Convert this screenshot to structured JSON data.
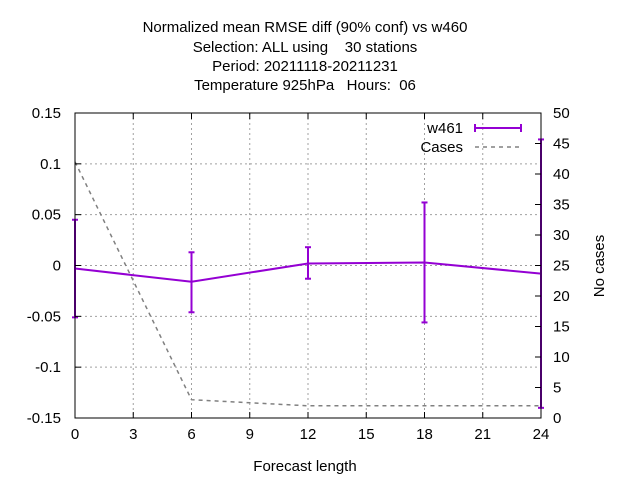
{
  "chart_data": {
    "type": "line",
    "title_lines": [
      "Normalized mean RMSE diff (90% conf) vs w460",
      "Selection: ALL using    30 stations",
      "Period: 20211118-20211231",
      "Temperature 925hPa   Hours:  06"
    ],
    "xlabel": "Forecast length",
    "ylabel": "",
    "y2label": "No cases",
    "xlim": [
      0,
      24
    ],
    "ylim": [
      -0.15,
      0.15
    ],
    "y2lim": [
      0,
      50
    ],
    "xticks": [
      "0",
      "3",
      "6",
      "9",
      "12",
      "15",
      "18",
      "21",
      "24"
    ],
    "yticks": [
      "0.15",
      "0.1",
      "0.05",
      "0",
      "-0.05",
      "-0.1",
      "-0.15"
    ],
    "y2ticks": [
      "50",
      "45",
      "40",
      "35",
      "30",
      "25",
      "20",
      "15",
      "10",
      "5",
      "0"
    ],
    "grid": true,
    "legend_position": "top-right",
    "series": [
      {
        "name": "w461",
        "axis": "y",
        "color": "#9400d3",
        "style": "solid-errorbars",
        "x": [
          0,
          6,
          12,
          18,
          24
        ],
        "y": [
          -0.003,
          -0.016,
          0.002,
          0.003,
          -0.008
        ],
        "err_low": [
          -0.051,
          -0.046,
          -0.013,
          -0.056,
          -0.14
        ],
        "err_high": [
          0.045,
          0.013,
          0.018,
          0.062,
          0.124
        ]
      },
      {
        "name": "Cases",
        "axis": "y2",
        "color": "#808080",
        "style": "dashed",
        "x": [
          0,
          6,
          12,
          18,
          24
        ],
        "y": [
          42,
          3,
          2,
          2,
          2
        ]
      }
    ]
  }
}
